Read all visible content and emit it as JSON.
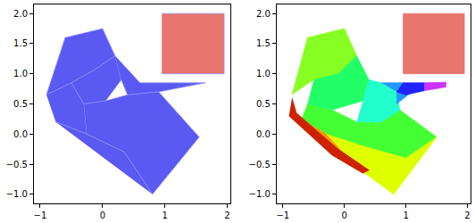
{
  "chart_data": [
    {
      "type": "polygon",
      "xlim": [
        -1.1,
        2.05
      ],
      "ylim": [
        -1.15,
        2.15
      ],
      "xticks": [
        {
          "value": -1,
          "label": "−1"
        },
        0,
        1,
        2
      ],
      "yticks": [
        {
          "value": -1.0,
          "label": "−1.0"
        },
        {
          "value": -0.5,
          "label": "−0.5"
        },
        {
          "value": 0.0,
          "label": "0.0"
        },
        0.5,
        {
          "value": 1.0,
          "label": "1.0"
        },
        1.5,
        {
          "value": 2.0,
          "label": "2.0"
        }
      ],
      "series": [
        {
          "color": "#5a5af2",
          "x": [
            -0.9,
            -0.6,
            0.0,
            0.2,
            -0.15,
            -0.5
          ],
          "y": [
            0.65,
            1.6,
            1.75,
            1.3,
            1.05,
            0.85
          ]
        },
        {
          "color": "#5a5af2",
          "x": [
            -0.5,
            -0.15,
            0.2,
            0.3,
            0.05,
            -0.3
          ],
          "y": [
            0.85,
            1.05,
            1.3,
            0.9,
            0.55,
            0.5
          ]
        },
        {
          "color": "#5a5af2",
          "x": [
            0.2,
            0.6,
            1.65,
            0.9,
            0.4,
            0.3
          ],
          "y": [
            1.3,
            0.85,
            0.85,
            0.7,
            0.65,
            0.9
          ]
        },
        {
          "color": "#5a5af2",
          "x": [
            -0.9,
            -0.5,
            -0.3,
            -0.25,
            -0.75
          ],
          "y": [
            0.65,
            0.85,
            0.5,
            0.0,
            0.2
          ]
        },
        {
          "color": "#5a5af2",
          "x": [
            -0.3,
            0.05,
            0.4,
            0.9,
            1.55,
            0.8,
            0.35,
            -0.25
          ],
          "y": [
            0.5,
            0.55,
            0.65,
            0.7,
            -0.05,
            -1.0,
            -0.3,
            0.0
          ]
        },
        {
          "color": "#5a5af2",
          "x": [
            -0.75,
            -0.25,
            0.35,
            0.8
          ],
          "y": [
            0.2,
            0.0,
            -0.3,
            -1.0
          ]
        },
        {
          "color": "#e8756e",
          "x": [
            0.95,
            1.95,
            1.95,
            0.95
          ],
          "y": [
            1.0,
            1.0,
            2.0,
            2.0
          ]
        }
      ]
    },
    {
      "type": "polygon",
      "xlim": [
        -1.1,
        2.05
      ],
      "ylim": [
        -1.15,
        2.15
      ],
      "xticks": [
        {
          "value": -1,
          "label": "−1"
        },
        0,
        1,
        2
      ],
      "yticks": [
        {
          "value": -1.0,
          "label": "−1.0"
        },
        {
          "value": -0.5,
          "label": "−0.5"
        },
        {
          "value": 0.0,
          "label": "0.0"
        },
        0.5,
        {
          "value": 1.0,
          "label": "1.0"
        },
        1.5,
        {
          "value": 2.0,
          "label": "2.0"
        }
      ],
      "series": [
        {
          "color": "#44ff33",
          "x": [
            -0.6,
            -0.2,
            0.2,
            0.6,
            0.9,
            1.5,
            1.0,
            0.3,
            -0.3,
            -0.7
          ],
          "y": [
            0.5,
            0.4,
            0.2,
            0.2,
            0.4,
            -0.05,
            -0.4,
            -0.2,
            0.0,
            0.25
          ]
        },
        {
          "color": "#ddff00",
          "x": [
            -0.3,
            0.3,
            1.0,
            1.5,
            0.8,
            0.2
          ],
          "y": [
            0.0,
            -0.2,
            -0.4,
            -0.05,
            -1.0,
            -0.55
          ]
        },
        {
          "color": "#ff9900",
          "x": [
            -0.7,
            -0.3,
            0.2,
            0.4,
            -0.1,
            -0.78
          ],
          "y": [
            0.25,
            0.0,
            -0.55,
            -0.6,
            -0.25,
            0.35
          ]
        },
        {
          "color": "#cc2200",
          "x": [
            -0.85,
            -0.78,
            -0.1,
            0.4,
            0.3,
            -0.2,
            -0.9
          ],
          "y": [
            0.6,
            0.35,
            -0.25,
            -0.6,
            -0.65,
            -0.35,
            0.3
          ]
        },
        {
          "color": "#88ff22",
          "x": [
            -0.85,
            -0.6,
            0.0,
            0.2,
            -0.1,
            -0.5
          ],
          "y": [
            0.65,
            1.6,
            1.75,
            1.3,
            1.0,
            0.9
          ]
        },
        {
          "color": "#22ff66",
          "x": [
            -0.5,
            -0.1,
            0.2,
            0.4,
            0.3,
            -0.2,
            -0.6
          ],
          "y": [
            0.9,
            1.0,
            1.3,
            0.9,
            0.55,
            0.4,
            0.5
          ]
        },
        {
          "color": "#22ffcc",
          "x": [
            0.3,
            0.4,
            0.6,
            0.85,
            0.9,
            0.6,
            0.2
          ],
          "y": [
            0.55,
            0.9,
            0.85,
            0.7,
            0.4,
            0.2,
            0.2
          ]
        },
        {
          "color": "#2299ff",
          "x": [
            0.6,
            0.95,
            1.1,
            0.85,
            0.85
          ],
          "y": [
            0.85,
            0.85,
            0.7,
            0.5,
            0.7
          ]
        },
        {
          "color": "#2222ff",
          "x": [
            0.95,
            1.3,
            1.3,
            1.0,
            0.85
          ],
          "y": [
            0.85,
            0.85,
            0.72,
            0.65,
            0.7
          ]
        },
        {
          "color": "#cc33ff",
          "x": [
            1.3,
            1.65,
            1.65,
            1.3
          ],
          "y": [
            0.85,
            0.86,
            0.78,
            0.72
          ]
        },
        {
          "color": "#e8756e",
          "x": [
            0.95,
            1.95,
            1.95,
            0.95
          ],
          "y": [
            1.0,
            1.0,
            2.0,
            2.0
          ]
        }
      ]
    }
  ]
}
